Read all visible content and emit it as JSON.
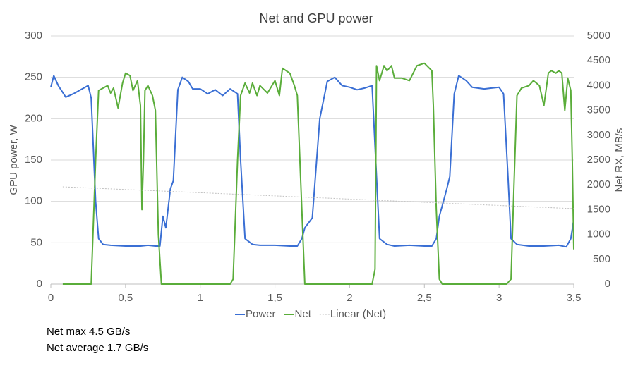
{
  "chart_data": {
    "type": "line",
    "title": "Net and GPU power",
    "y_label": "GPU power, W",
    "y2_label": "Net RX, MB/s",
    "xlim": [
      0,
      3.5
    ],
    "xticks": [
      0,
      {
        "value": 0.5,
        "label": "0,5"
      },
      1,
      {
        "value": 1.5,
        "label": "1,5"
      },
      2,
      {
        "value": 2.5,
        "label": "2,5"
      },
      3,
      {
        "value": 3.5,
        "label": "3,5"
      }
    ],
    "ylim": [
      0,
      300
    ],
    "yticks": [
      0,
      50,
      100,
      150,
      200,
      250,
      300
    ],
    "y2lim": [
      0,
      5000
    ],
    "y2ticks": [
      0,
      500,
      1000,
      1500,
      2000,
      2500,
      3000,
      3500,
      4000,
      4500,
      5000
    ],
    "grid": true,
    "legend": "bottom",
    "series": [
      {
        "name": "Power",
        "color": "#3a6fd4",
        "axis": "y",
        "x": [
          0,
          0.02,
          0.05,
          0.1,
          0.15,
          0.2,
          0.25,
          0.27,
          0.3,
          0.32,
          0.35,
          0.4,
          0.5,
          0.6,
          0.65,
          0.7,
          0.73,
          0.75,
          0.77,
          0.8,
          0.82,
          0.85,
          0.88,
          0.92,
          0.95,
          1.0,
          1.05,
          1.1,
          1.15,
          1.2,
          1.25,
          1.27,
          1.3,
          1.35,
          1.4,
          1.5,
          1.6,
          1.65,
          1.68,
          1.7,
          1.75,
          1.8,
          1.85,
          1.9,
          1.95,
          2.0,
          2.05,
          2.1,
          2.15,
          2.18,
          2.2,
          2.25,
          2.3,
          2.4,
          2.5,
          2.55,
          2.58,
          2.6,
          2.62,
          2.65,
          2.67,
          2.7,
          2.73,
          2.78,
          2.82,
          2.9,
          2.95,
          3.0,
          3.03,
          3.06,
          3.08,
          3.12,
          3.2,
          3.3,
          3.4,
          3.45,
          3.48,
          3.5
        ],
        "values": [
          238,
          252,
          240,
          226,
          230,
          235,
          240,
          225,
          100,
          55,
          48,
          47,
          46,
          46,
          47,
          46,
          46,
          82,
          68,
          115,
          125,
          235,
          250,
          245,
          236,
          236,
          230,
          235,
          228,
          236,
          230,
          150,
          55,
          48,
          47,
          47,
          46,
          46,
          55,
          68,
          80,
          200,
          245,
          250,
          240,
          238,
          235,
          237,
          240,
          130,
          55,
          48,
          46,
          47,
          46,
          46,
          55,
          82,
          95,
          115,
          130,
          230,
          252,
          246,
          238,
          236,
          237,
          238,
          230,
          130,
          55,
          48,
          46,
          46,
          47,
          45,
          55,
          78
        ]
      },
      {
        "name": "Net",
        "color": "#5aad3a",
        "axis": "y2",
        "x": [
          0.08,
          0.2,
          0.27,
          0.3,
          0.32,
          0.35,
          0.38,
          0.4,
          0.42,
          0.45,
          0.48,
          0.5,
          0.53,
          0.55,
          0.58,
          0.6,
          0.61,
          0.62,
          0.63,
          0.65,
          0.68,
          0.7,
          0.72,
          0.74,
          0.8,
          1.2,
          1.22,
          1.25,
          1.27,
          1.3,
          1.33,
          1.35,
          1.38,
          1.4,
          1.45,
          1.5,
          1.53,
          1.55,
          1.6,
          1.63,
          1.65,
          1.68,
          1.7,
          2.0,
          2.15,
          2.17,
          2.18,
          2.2,
          2.23,
          2.25,
          2.28,
          2.3,
          2.35,
          2.4,
          2.45,
          2.5,
          2.55,
          2.56,
          2.58,
          2.6,
          2.62,
          2.65,
          3.05,
          3.08,
          3.1,
          3.12,
          3.15,
          3.2,
          3.23,
          3.27,
          3.3,
          3.33,
          3.35,
          3.38,
          3.4,
          3.42,
          3.44,
          3.46,
          3.48,
          3.49,
          3.5
        ],
        "values": [
          0,
          0,
          0,
          2500,
          3900,
          3950,
          4000,
          3850,
          3950,
          3550,
          4050,
          4250,
          4200,
          3900,
          4100,
          3600,
          1500,
          2500,
          3900,
          4000,
          3800,
          3500,
          1000,
          0,
          0,
          0,
          100,
          2500,
          3800,
          4050,
          3850,
          4050,
          3800,
          4000,
          3850,
          4100,
          3800,
          4350,
          4250,
          4000,
          3800,
          1500,
          0,
          0,
          0,
          300,
          4400,
          4100,
          4400,
          4300,
          4400,
          4150,
          4150,
          4100,
          4400,
          4450,
          4300,
          3600,
          1500,
          100,
          0,
          0,
          0,
          100,
          2000,
          3800,
          3950,
          4000,
          4100,
          4000,
          3600,
          4250,
          4300,
          4250,
          4300,
          4250,
          3500,
          4150,
          3900,
          2500,
          700
        ]
      },
      {
        "name": "Linear (Net)",
        "color": "#bfbfbf",
        "axis": "y2",
        "dashed": true,
        "x": [
          0.08,
          3.5
        ],
        "values": [
          1960,
          1520
        ]
      }
    ],
    "notes": [
      "Net max 4.5 GB/s",
      "Net average 1.7 GB/s"
    ]
  }
}
